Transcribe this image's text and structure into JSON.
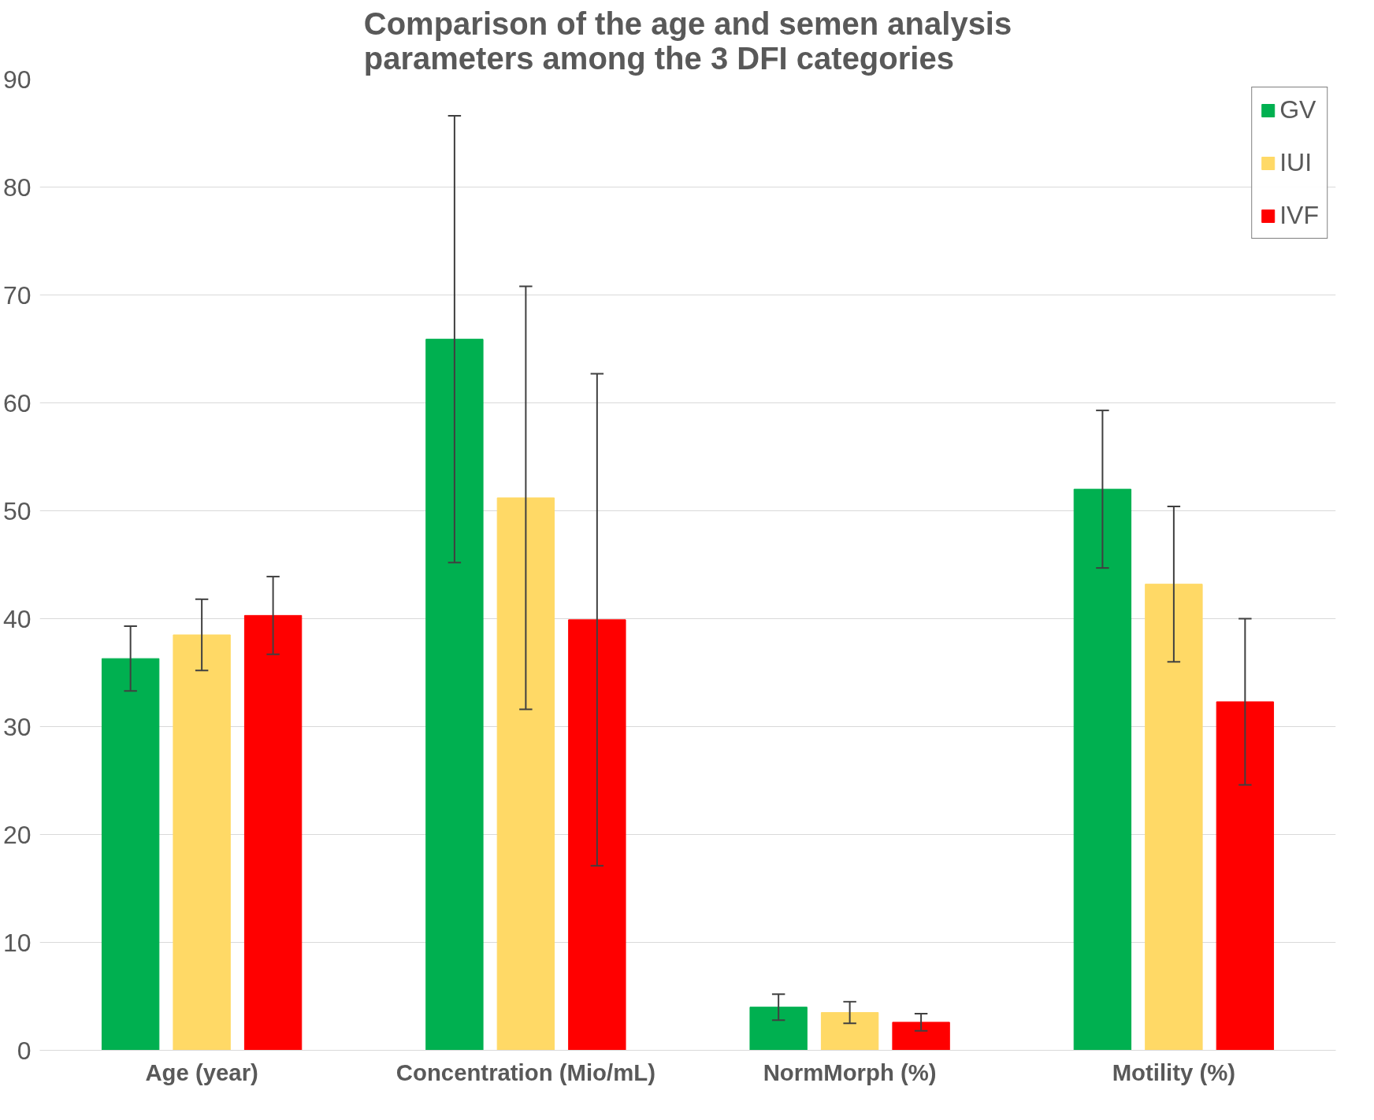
{
  "chart_data": {
    "type": "bar",
    "title": "Comparison of the age and semen analysis parameters among the 3 DFI categories",
    "categories": [
      "Age (year)",
      "Concentration (Mio/mL)",
      "NormMorph (%)",
      "Motility (%)"
    ],
    "series": [
      {
        "name": "GV",
        "color": "#00b050",
        "values": [
          36.3,
          65.9,
          4.0,
          52.0
        ],
        "errors": [
          3.0,
          20.7,
          1.2,
          7.3
        ]
      },
      {
        "name": "IUI",
        "color": "#ffd966",
        "values": [
          38.5,
          51.2,
          3.5,
          43.2
        ],
        "errors": [
          3.3,
          19.6,
          1.0,
          7.2
        ]
      },
      {
        "name": "IVF",
        "color": "#ff0000",
        "values": [
          40.3,
          39.9,
          2.6,
          32.3
        ],
        "errors": [
          3.6,
          22.8,
          0.8,
          7.7
        ]
      }
    ],
    "ylim": [
      0,
      90
    ],
    "yticks": [
      0,
      10,
      20,
      30,
      40,
      50,
      60,
      70,
      80,
      90
    ],
    "grid": "y",
    "legend": "top right"
  }
}
